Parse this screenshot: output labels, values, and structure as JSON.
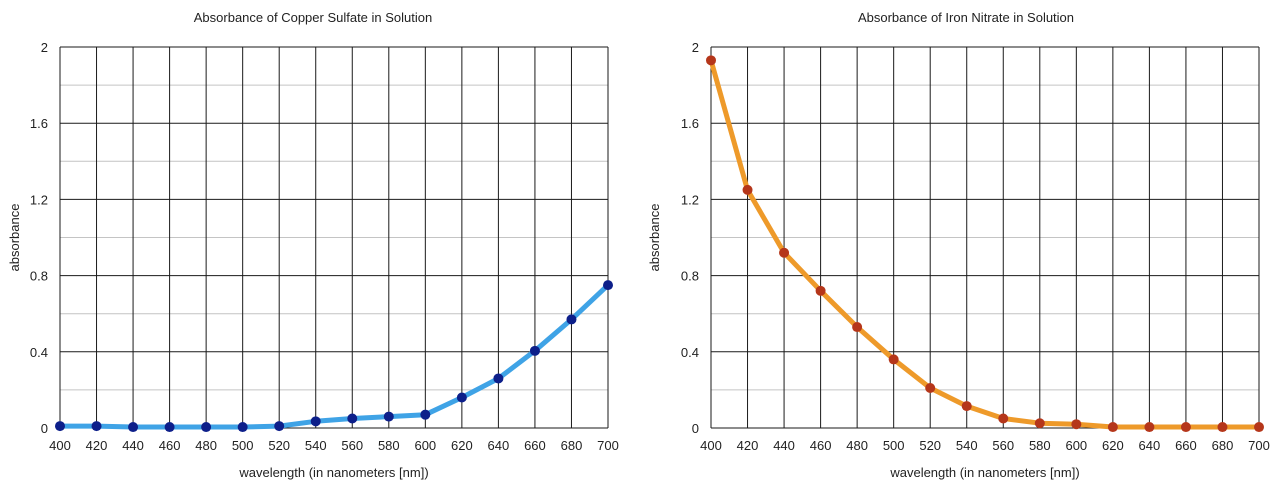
{
  "chart_data": [
    {
      "type": "line",
      "title": "Absorbance of Copper Sulfate in Solution",
      "xlabel": "wavelength (in nanometers [nm])",
      "ylabel": "absorbance",
      "xlim": [
        400,
        700
      ],
      "ylim": [
        0,
        2
      ],
      "x_ticks": [
        400,
        420,
        440,
        460,
        480,
        500,
        520,
        540,
        560,
        580,
        600,
        620,
        640,
        660,
        680,
        700
      ],
      "y_ticks": [
        0,
        0.4,
        0.8,
        1.2,
        1.6,
        2
      ],
      "y_tick_labels": [
        "0",
        "0.4",
        "0.8",
        "1.2",
        "1.6",
        "2"
      ],
      "grid": true,
      "legend": "none",
      "line_color": "#3fa3e6",
      "marker_color": "#0d1f8a",
      "series": [
        {
          "x": [
            400,
            420,
            440,
            460,
            480,
            500,
            520,
            540,
            560,
            580,
            600,
            620,
            640,
            660,
            680,
            700
          ],
          "values": [
            0.01,
            0.01,
            0.005,
            0.005,
            0.005,
            0.005,
            0.01,
            0.035,
            0.05,
            0.06,
            0.07,
            0.16,
            0.26,
            0.405,
            0.57,
            0.75
          ]
        }
      ]
    },
    {
      "type": "line",
      "title": "Absorbance of Iron Nitrate in Solution",
      "xlabel": "wavelength (in nanometers [nm])",
      "ylabel": "absorbance",
      "xlim": [
        400,
        700
      ],
      "ylim": [
        0,
        2
      ],
      "x_ticks": [
        400,
        420,
        440,
        460,
        480,
        500,
        520,
        540,
        560,
        580,
        600,
        620,
        640,
        660,
        680,
        700
      ],
      "y_ticks": [
        0,
        0.4,
        0.8,
        1.2,
        1.6,
        2
      ],
      "y_tick_labels": [
        "0",
        "0.4",
        "0.8",
        "1.2",
        "1.6",
        "2"
      ],
      "grid": true,
      "legend": "none",
      "line_color": "#ee9a2a",
      "marker_color": "#b5361a",
      "series": [
        {
          "x": [
            400,
            420,
            440,
            460,
            480,
            500,
            520,
            540,
            560,
            580,
            600,
            620,
            640,
            660,
            680,
            700
          ],
          "values": [
            1.93,
            1.25,
            0.92,
            0.72,
            0.53,
            0.36,
            0.21,
            0.115,
            0.05,
            0.025,
            0.02,
            0.005,
            0.005,
            0.005,
            0.005,
            0.005
          ]
        }
      ]
    }
  ]
}
